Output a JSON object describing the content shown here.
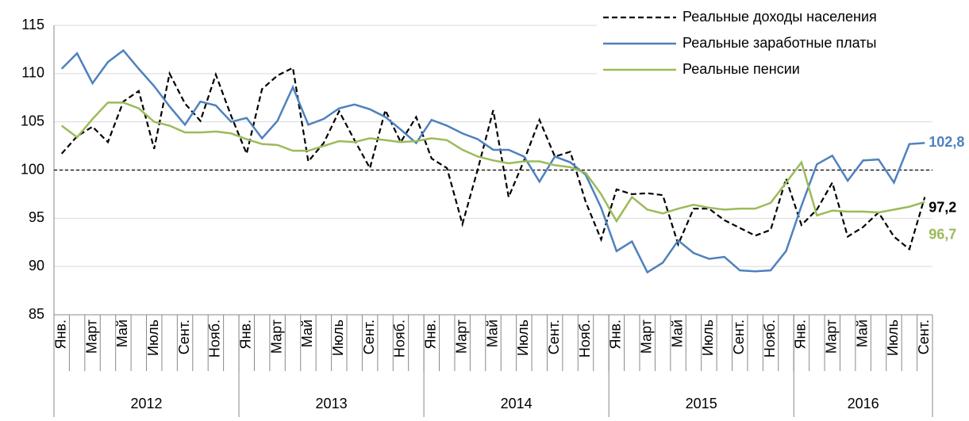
{
  "chart_data": {
    "type": "line",
    "categories": [
      "Янв.",
      null,
      "Март",
      null,
      "Май",
      null,
      "Июль",
      null,
      "Сент.",
      null,
      "Нояб.",
      null,
      "Янв.",
      null,
      "Март",
      null,
      "Май",
      null,
      "Июль",
      null,
      "Сент.",
      null,
      "Нояб.",
      null,
      "Янв.",
      null,
      "Март",
      null,
      "Май",
      null,
      "Июль",
      null,
      "Сент.",
      null,
      "Нояб.",
      null,
      "Янв.",
      null,
      "Март",
      null,
      "Май",
      null,
      "Июль",
      null,
      "Сент.",
      null,
      "Нояб.",
      null,
      "Янв.",
      null,
      "Март",
      null,
      "Май",
      null,
      "Июль",
      null,
      "Сент."
    ],
    "groups": [
      "2012",
      "2013",
      "2014",
      "2015",
      "2016"
    ],
    "ylim": [
      85,
      115
    ],
    "yticks": [
      85,
      90,
      95,
      100,
      105,
      110,
      115
    ],
    "grid": true,
    "reference_line": 100,
    "series": [
      {
        "name": "Реальные доходы населения",
        "color": "#000000",
        "dash": true,
        "values": [
          101.7,
          103.5,
          104.5,
          102.9,
          107.1,
          108.2,
          102.2,
          110,
          106.9,
          105.1,
          109.9,
          105.6,
          101.7,
          108.4,
          109.8,
          110.6,
          100.9,
          102.8,
          106.1,
          103.1,
          100.2,
          106.2,
          102.9,
          105.5,
          101.2,
          100.2,
          94.4,
          100.1,
          106.2,
          97.2,
          101,
          105.2,
          101.4,
          101.9,
          96.7,
          92.8,
          98,
          97.5,
          97.6,
          97.4,
          92.3,
          96,
          96,
          94.8,
          94,
          93.2,
          93.8,
          99.1,
          94.3,
          95.9,
          98.7,
          93.1,
          94.1,
          95.6,
          93.1,
          91.8,
          97.2
        ],
        "value_labels": [
          null,
          null,
          null,
          null,
          null,
          null,
          null,
          null,
          null,
          null,
          null,
          null,
          null,
          null,
          null,
          null,
          null,
          null,
          null,
          null,
          null,
          null,
          null,
          null,
          null,
          null,
          null,
          null,
          null,
          null,
          null,
          null,
          null,
          null,
          null,
          null,
          null,
          null,
          null,
          null,
          null,
          null,
          null,
          null,
          null,
          null,
          null,
          null,
          null,
          null,
          null,
          null,
          null,
          null,
          null,
          null,
          "97,2"
        ]
      },
      {
        "name": "Реальные заработные платы",
        "color": "#4f81bd",
        "dash": false,
        "values": [
          110.5,
          112.1,
          109,
          111.2,
          112.4,
          110.5,
          108.7,
          106.6,
          104.7,
          107.1,
          106.7,
          105,
          105.4,
          103.3,
          105.1,
          108.6,
          104.7,
          105.3,
          106.4,
          106.8,
          106.3,
          105.5,
          104.2,
          102.8,
          105.2,
          104.6,
          103.8,
          103.2,
          102.1,
          102.1,
          101.4,
          98.8,
          101.4,
          100.8,
          99.5,
          96.1,
          91.6,
          92.6,
          89.4,
          90.4,
          92.7,
          91.4,
          90.8,
          91,
          89.6,
          89.5,
          89.6,
          91.6,
          96.3,
          100.6,
          101.5,
          98.9,
          101,
          101.1,
          98.7,
          102.7,
          102.8
        ],
        "value_labels": [
          null,
          null,
          null,
          null,
          null,
          null,
          null,
          null,
          null,
          null,
          null,
          null,
          null,
          null,
          null,
          null,
          null,
          null,
          null,
          null,
          null,
          null,
          null,
          null,
          null,
          null,
          null,
          null,
          null,
          null,
          null,
          null,
          null,
          null,
          null,
          null,
          null,
          null,
          null,
          null,
          null,
          null,
          null,
          null,
          null,
          null,
          null,
          null,
          null,
          null,
          null,
          null,
          null,
          null,
          null,
          null,
          "102,8"
        ]
      },
      {
        "name": "Реальные пенсии",
        "color": "#9bbb59",
        "dash": false,
        "values": [
          104.6,
          103.4,
          105.3,
          107,
          107,
          106.4,
          105,
          104.6,
          103.9,
          103.9,
          104,
          103.8,
          103.2,
          102.7,
          102.6,
          102,
          102,
          102.5,
          103,
          102.9,
          103.3,
          103.1,
          102.9,
          103,
          103.3,
          103.1,
          102.1,
          101.4,
          101,
          100.7,
          100.9,
          100.9,
          100.5,
          100.3,
          99.7,
          97.5,
          94.7,
          97.2,
          95.9,
          95.5,
          96,
          96.4,
          96.1,
          95.9,
          96,
          96,
          96.6,
          98.7,
          100.8,
          95.3,
          95.8,
          95.7,
          95.7,
          95.6,
          95.9,
          96.2,
          96.7
        ],
        "value_labels": [
          null,
          null,
          null,
          null,
          null,
          null,
          null,
          null,
          null,
          null,
          null,
          null,
          null,
          null,
          null,
          null,
          null,
          null,
          null,
          null,
          null,
          null,
          null,
          null,
          null,
          null,
          null,
          null,
          null,
          null,
          null,
          null,
          null,
          null,
          null,
          null,
          null,
          null,
          null,
          null,
          null,
          null,
          null,
          null,
          null,
          null,
          null,
          null,
          null,
          null,
          null,
          null,
          null,
          null,
          null,
          null,
          "96,7"
        ]
      }
    ]
  }
}
